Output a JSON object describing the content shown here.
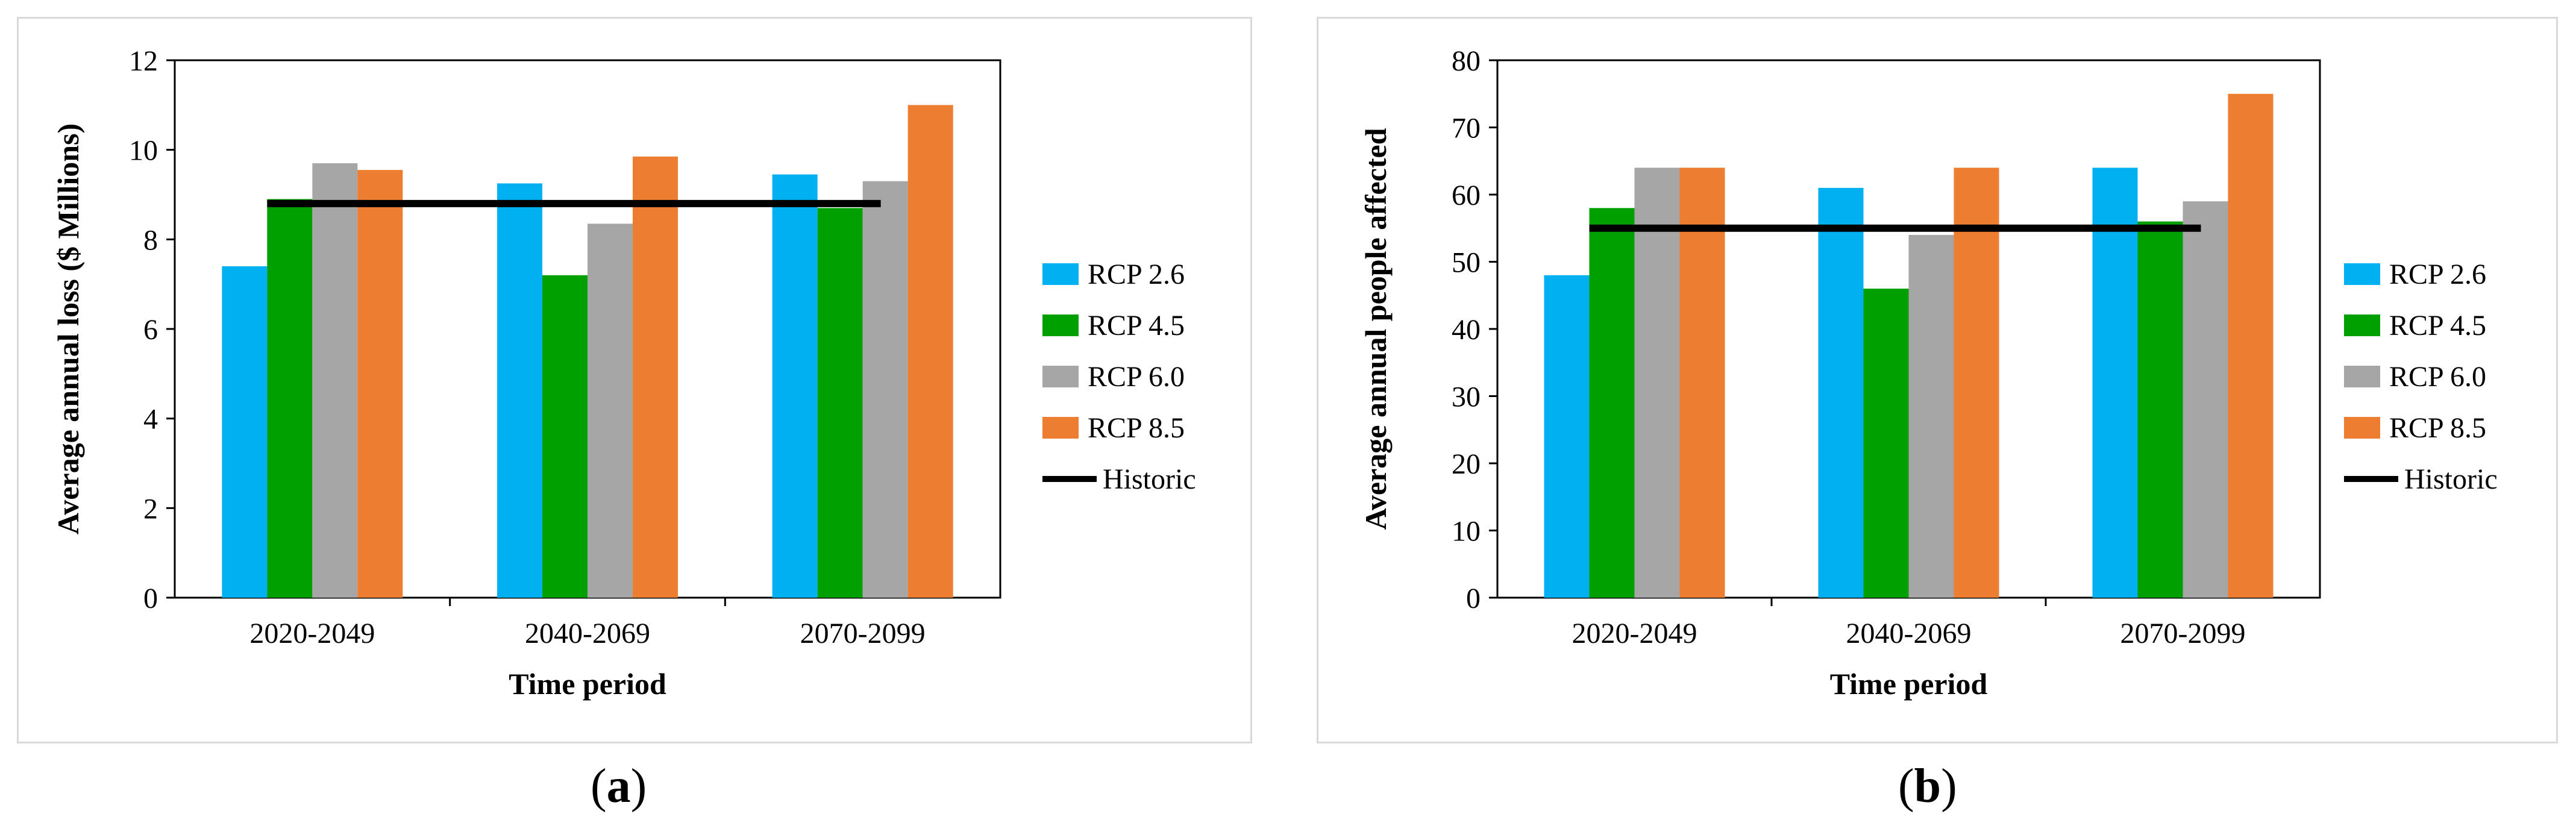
{
  "colors": {
    "rcp26": "#00b0f0",
    "rcp45": "#00a000",
    "rcp60": "#a6a6a6",
    "rcp85": "#ed7d31",
    "historic": "#000000",
    "axis": "#000000"
  },
  "panel_labels": {
    "a_prefix": "(",
    "a_letter": "a",
    "a_suffix": ")",
    "b_prefix": "(",
    "b_letter": "b",
    "b_suffix": ")"
  },
  "chart_data": [
    {
      "id": "a",
      "type": "bar",
      "title": "",
      "xlabel": "Time period",
      "ylabel": "Average annual loss ($ Millions)",
      "categories": [
        "2020-2049",
        "2040-2069",
        "2070-2099"
      ],
      "ylim": [
        0,
        12
      ],
      "yticks": [
        0,
        2,
        4,
        6,
        8,
        10,
        12
      ],
      "series": [
        {
          "name": "RCP 2.6",
          "values": [
            7.4,
            9.25,
            9.45
          ]
        },
        {
          "name": "RCP 4.5",
          "values": [
            8.9,
            7.2,
            8.7
          ]
        },
        {
          "name": "RCP 6.0",
          "values": [
            9.7,
            8.35,
            9.3
          ]
        },
        {
          "name": "RCP 8.5",
          "values": [
            9.55,
            9.85,
            11.0
          ]
        }
      ],
      "historic": {
        "name": "Historic",
        "value": 8.8
      },
      "legend": [
        "RCP 2.6",
        "RCP 4.5",
        "RCP 6.0",
        "RCP 8.5",
        "Historic"
      ],
      "legend_position": "right",
      "grid": false
    },
    {
      "id": "b",
      "type": "bar",
      "title": "",
      "xlabel": "Time period",
      "ylabel": "Average annual people affected",
      "categories": [
        "2020-2049",
        "2040-2069",
        "2070-2099"
      ],
      "ylim": [
        0,
        80
      ],
      "yticks": [
        0,
        10,
        20,
        30,
        40,
        50,
        60,
        70,
        80
      ],
      "series": [
        {
          "name": "RCP 2.6",
          "values": [
            48,
            61,
            64
          ]
        },
        {
          "name": "RCP 4.5",
          "values": [
            58,
            46,
            56
          ]
        },
        {
          "name": "RCP 6.0",
          "values": [
            64,
            54,
            59
          ]
        },
        {
          "name": "RCP 8.5",
          "values": [
            64,
            64,
            75
          ]
        }
      ],
      "historic": {
        "name": "Historic",
        "value": 55
      },
      "legend": [
        "RCP 2.6",
        "RCP 4.5",
        "RCP 6.0",
        "RCP 8.5",
        "Historic"
      ],
      "legend_position": "right",
      "grid": false
    }
  ]
}
